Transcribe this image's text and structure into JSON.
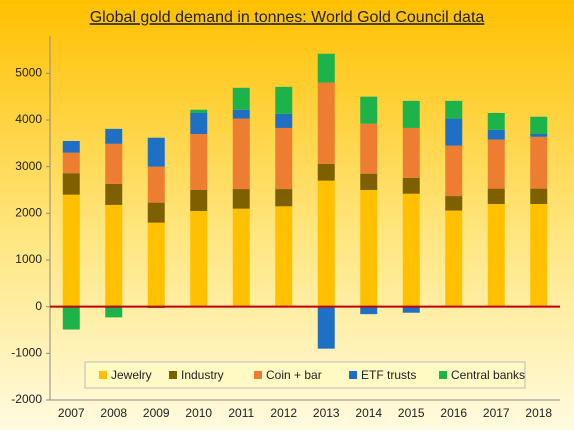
{
  "chart_data": {
    "type": "stacked_bar",
    "title": "Global gold demand in tonnes: World Gold Council data",
    "categories": [
      "2007",
      "2008",
      "2009",
      "2010",
      "2011",
      "2012",
      "2013",
      "2014",
      "2015",
      "2016",
      "2017",
      "2018"
    ],
    "series": [
      {
        "name": "Jewelry",
        "color": "#ffc000",
        "values": [
          2400,
          2180,
          1800,
          2050,
          2100,
          2150,
          2700,
          2500,
          2420,
          2060,
          2200,
          2200
        ]
      },
      {
        "name": "Industry",
        "color": "#7f6000",
        "values": [
          460,
          450,
          430,
          450,
          420,
          370,
          360,
          350,
          340,
          310,
          330,
          330
        ]
      },
      {
        "name": "Coin + bar",
        "color": "#ed7d31",
        "values": [
          440,
          860,
          770,
          1200,
          1510,
          1310,
          1740,
          1070,
          1070,
          1080,
          1050,
          1110
        ]
      },
      {
        "name": "ETF trusts",
        "color": "#1f6fc5",
        "values": [
          250,
          320,
          620,
          450,
          190,
          300,
          -900,
          -160,
          -130,
          580,
          210,
          60
        ]
      },
      {
        "name": "Central banks",
        "color": "#1db34a",
        "values": [
          -490,
          -230,
          -30,
          70,
          470,
          580,
          620,
          580,
          580,
          380,
          360,
          370
        ]
      }
    ],
    "ylim": [
      -2000,
      5800
    ],
    "yticks": [
      -2000,
      -1000,
      0,
      1000,
      2000,
      3000,
      4000,
      5000
    ],
    "zero_line_color": "#c00000",
    "legend": "bottom"
  }
}
